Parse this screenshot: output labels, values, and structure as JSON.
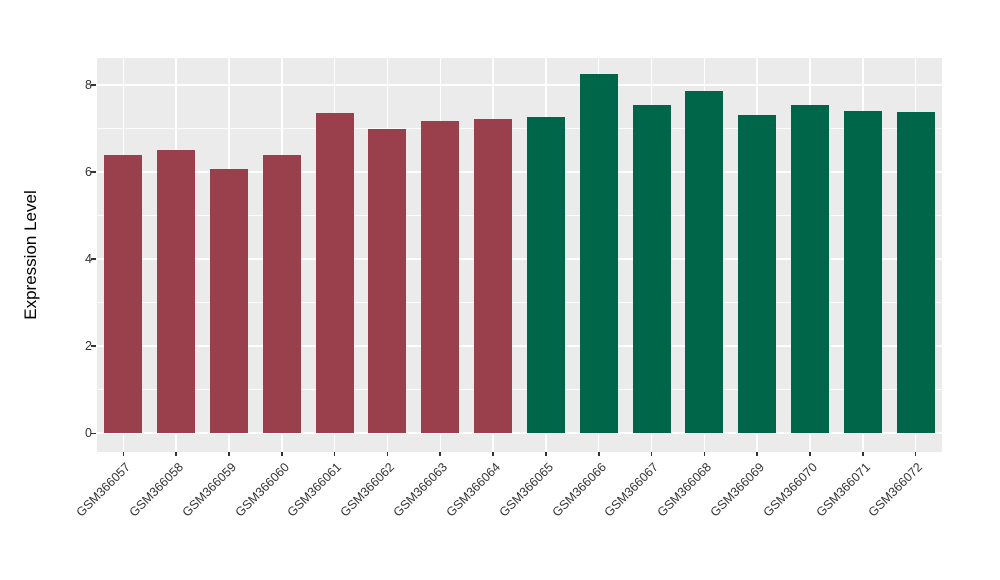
{
  "chart_data": {
    "type": "bar",
    "title": "",
    "ylabel": "Expression Level",
    "xlabel": "",
    "categories": [
      "GSM366057",
      "GSM366058",
      "GSM366059",
      "GSM366060",
      "GSM366061",
      "GSM366062",
      "GSM366063",
      "GSM366064",
      "GSM366065",
      "GSM366066",
      "GSM366067",
      "GSM366068",
      "GSM366069",
      "GSM366070",
      "GSM366071",
      "GSM366072"
    ],
    "values": [
      6.4,
      6.5,
      6.08,
      6.4,
      7.36,
      6.98,
      7.18,
      7.22,
      7.26,
      8.24,
      7.55,
      7.87,
      7.3,
      7.54,
      7.4,
      7.38
    ],
    "bar_colors": [
      "#9A404D",
      "#9A404D",
      "#9A404D",
      "#9A404D",
      "#9A404D",
      "#9A404D",
      "#9A404D",
      "#9A404D",
      "#00664A",
      "#00664A",
      "#00664A",
      "#00664A",
      "#00664A",
      "#00664A",
      "#00664A",
      "#00664A"
    ],
    "group_colors": {
      "red_group": "#9A404D",
      "green_group": "#00664A"
    },
    "yticks": [
      0,
      2,
      4,
      6,
      8
    ],
    "ytick_labels": [
      "0",
      "2",
      "4",
      "6",
      "8"
    ],
    "minor_yticks": [
      1,
      3,
      5,
      7
    ],
    "ylim": [
      0,
      8.62
    ],
    "grid": true,
    "legend": "none",
    "panel_background": "#EBEBEB",
    "gridline_color": "#FFFFFF",
    "axis_text_color": "#333333"
  }
}
